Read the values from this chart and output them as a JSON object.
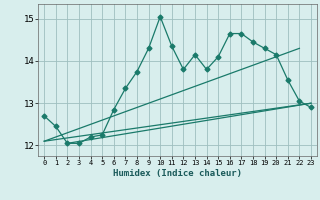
{
  "xlabel": "Humidex (Indice chaleur)",
  "background_color": "#d8eeed",
  "grid_color": "#9ebfbf",
  "line_color": "#1a7a6a",
  "xlim": [
    -0.5,
    23.5
  ],
  "ylim": [
    11.75,
    15.35
  ],
  "yticks": [
    12,
    13,
    14,
    15
  ],
  "xticks": [
    0,
    1,
    2,
    3,
    4,
    5,
    6,
    7,
    8,
    9,
    10,
    11,
    12,
    13,
    14,
    15,
    16,
    17,
    18,
    19,
    20,
    21,
    22,
    23
  ],
  "series1_x": [
    0,
    1,
    2,
    3,
    4,
    5,
    6,
    7,
    8,
    9,
    10,
    11,
    12,
    13,
    14,
    15,
    16,
    17,
    18,
    19,
    20,
    21,
    22,
    23
  ],
  "series1_y": [
    12.7,
    12.45,
    12.05,
    12.05,
    12.2,
    12.25,
    12.85,
    13.35,
    13.75,
    14.3,
    15.05,
    14.35,
    13.8,
    14.15,
    13.8,
    14.1,
    14.65,
    14.65,
    14.45,
    14.3,
    14.15,
    13.55,
    13.05,
    12.9
  ],
  "series2_x": [
    0,
    22
  ],
  "series2_y": [
    12.1,
    14.3
  ],
  "series3_x": [
    0,
    23
  ],
  "series3_y": [
    12.1,
    13.0
  ],
  "series4_x": [
    2,
    23
  ],
  "series4_y": [
    12.05,
    13.0
  ],
  "marker": "D",
  "markersize": 2.5,
  "linewidth": 0.9
}
